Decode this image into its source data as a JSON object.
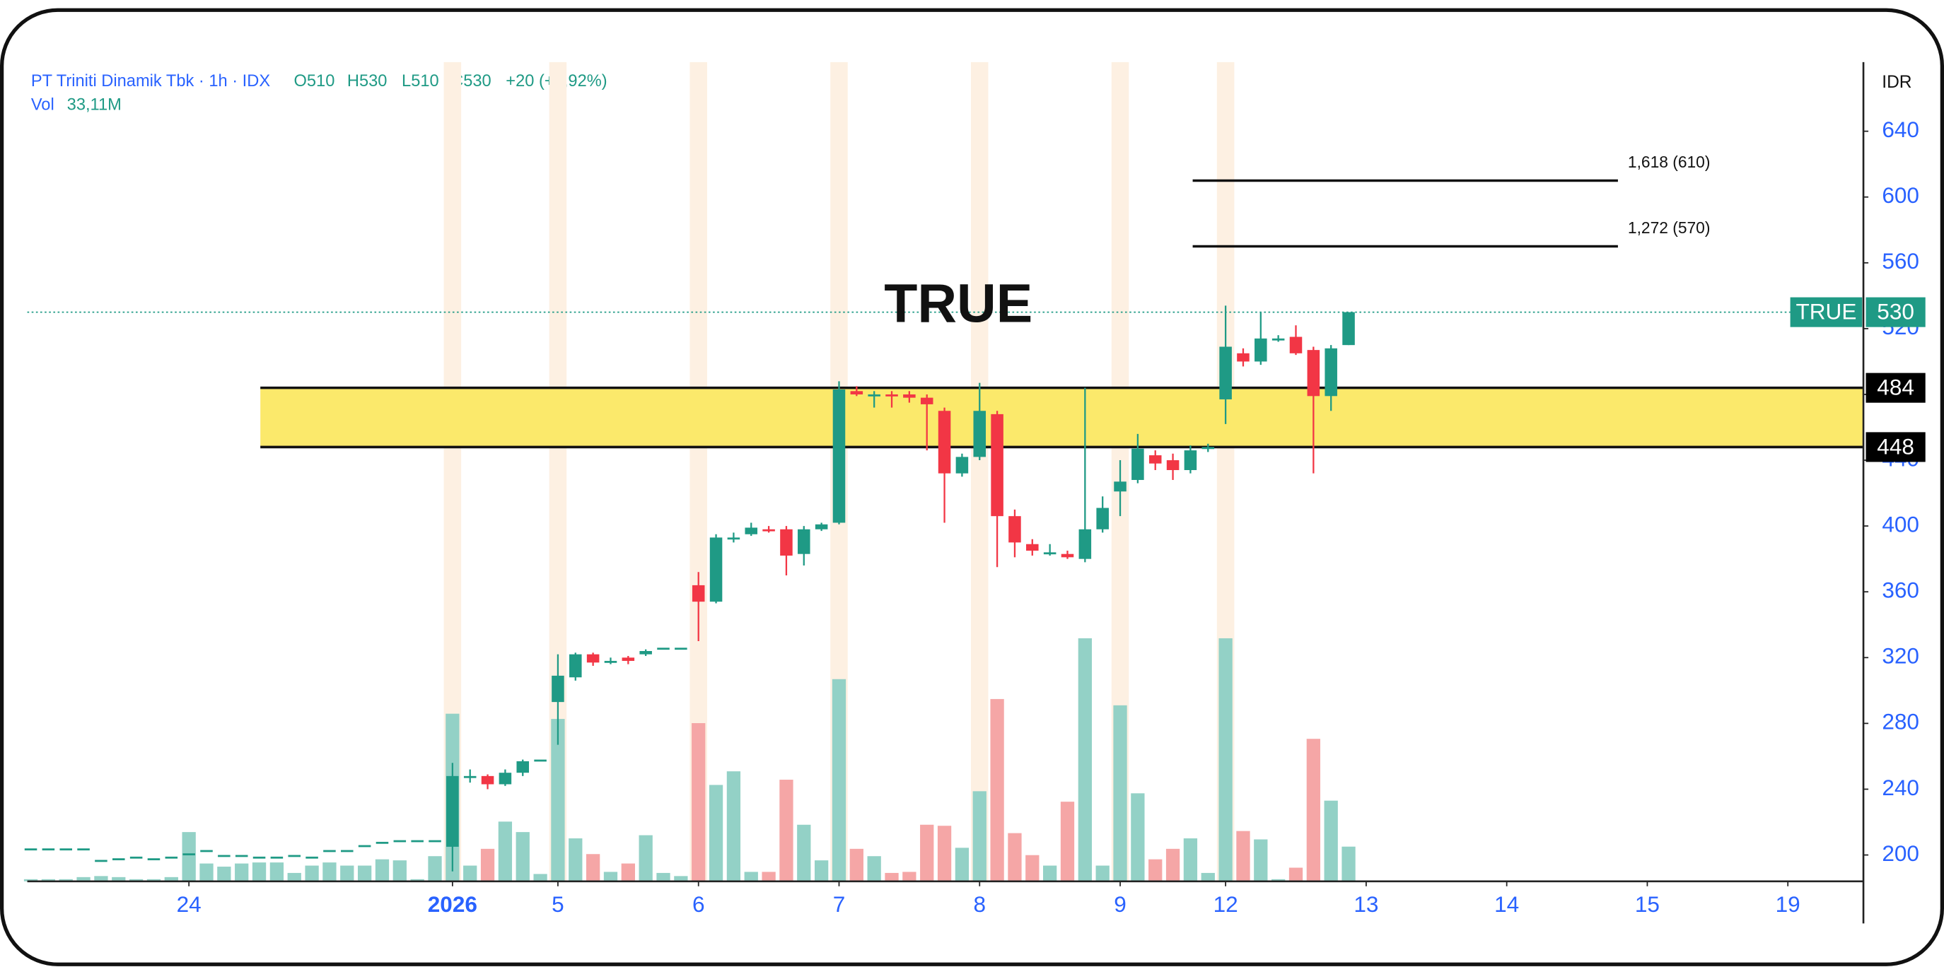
{
  "chart_data": {
    "type": "candlestick",
    "header": {
      "symbol": "PT Triniti Dinamik Tbk · 1h · IDX",
      "ohlc": [
        "O510",
        "H530",
        "L510",
        "C530"
      ],
      "change": "+20 (+3,92%)",
      "volume_name": "Vol",
      "volume_value": "33,11M"
    },
    "currency": "IDR",
    "annotation": "TRUE",
    "symbol_tag": "TRUE",
    "open": [
      204,
      204,
      204,
      204,
      197,
      198,
      199,
      198,
      199,
      201,
      203,
      200,
      200,
      199,
      199,
      200,
      199,
      203,
      203,
      206,
      208,
      209,
      209,
      209,
      205,
      248,
      248,
      243,
      250,
      258,
      293,
      308,
      322,
      318,
      320,
      322,
      326,
      326,
      364,
      354,
      392,
      395,
      398,
      398,
      383,
      398,
      402,
      482,
      480,
      480,
      480,
      478,
      470,
      432,
      442,
      468,
      406,
      389,
      384,
      383,
      380,
      398,
      421,
      428,
      443,
      440,
      434,
      447,
      477,
      505,
      500,
      514,
      515,
      507,
      479,
      510
    ],
    "high": [
      204,
      204,
      204,
      204,
      197,
      198,
      199,
      198,
      199,
      201,
      203,
      200,
      200,
      199,
      199,
      200,
      199,
      203,
      203,
      206,
      208,
      209,
      209,
      209,
      256,
      252,
      249,
      252,
      258,
      258,
      322,
      323,
      323,
      320,
      321,
      325,
      326,
      326,
      372,
      395,
      396,
      402,
      400,
      400,
      400,
      402,
      488,
      485,
      482,
      482,
      482,
      480,
      472,
      444,
      487,
      470,
      410,
      392,
      389,
      385,
      484,
      418,
      440,
      456,
      446,
      444,
      449,
      450,
      534,
      508,
      530,
      516,
      522,
      509,
      510,
      530
    ],
    "low": [
      204,
      204,
      204,
      204,
      197,
      198,
      199,
      198,
      199,
      201,
      203,
      200,
      200,
      199,
      199,
      200,
      199,
      203,
      203,
      206,
      208,
      209,
      209,
      209,
      190,
      244,
      240,
      242,
      248,
      258,
      267,
      306,
      315,
      316,
      316,
      321,
      326,
      326,
      330,
      353,
      390,
      394,
      396,
      370,
      376,
      397,
      401,
      479,
      472,
      472,
      475,
      446,
      402,
      430,
      440,
      375,
      381,
      382,
      382,
      380,
      378,
      396,
      406,
      426,
      434,
      428,
      432,
      445,
      462,
      497,
      498,
      512,
      504,
      432,
      470,
      510
    ],
    "close": [
      204,
      204,
      204,
      204,
      197,
      198,
      199,
      198,
      199,
      201,
      203,
      200,
      200,
      199,
      199,
      200,
      199,
      203,
      203,
      206,
      208,
      209,
      209,
      209,
      248,
      248,
      243,
      250,
      257,
      258,
      309,
      322,
      317,
      318,
      318,
      324,
      326,
      326,
      354,
      393,
      393,
      399,
      397,
      382,
      398,
      401,
      483,
      480,
      480,
      479,
      478,
      474,
      432,
      442,
      470,
      406,
      390,
      385,
      384,
      381,
      398,
      411,
      427,
      447,
      438,
      434,
      446,
      448,
      509,
      500,
      514,
      514,
      505,
      479,
      508,
      530
    ],
    "volume": [
      2,
      2,
      2,
      4,
      5,
      4,
      2,
      2,
      4,
      47,
      17,
      14,
      17,
      18,
      18,
      8,
      15,
      18,
      15,
      15,
      21,
      20,
      2,
      24,
      160,
      15,
      31,
      57,
      47,
      7,
      155,
      41,
      26,
      9,
      17,
      44,
      8,
      5,
      151,
      92,
      105,
      9,
      9,
      97,
      54,
      20,
      193,
      31,
      24,
      8,
      9,
      54,
      53,
      32,
      86,
      174,
      46,
      25,
      15,
      76,
      232,
      15,
      168,
      84,
      21,
      31,
      41,
      8,
      232,
      48,
      40,
      2,
      13,
      136,
      77,
      33.11
    ],
    "xlim": [
      -0.2,
      104.3
    ],
    "xticks": [
      {
        "value": 9,
        "label": "24"
      },
      {
        "value": 24,
        "label": "2026"
      },
      {
        "value": 30,
        "label": "5"
      },
      {
        "value": 38,
        "label": "6"
      },
      {
        "value": 46,
        "label": "7"
      },
      {
        "value": 54,
        "label": "8"
      },
      {
        "value": 62,
        "label": "9"
      },
      {
        "value": 68,
        "label": "12"
      },
      {
        "value": 76,
        "label": "13"
      },
      {
        "value": 84,
        "label": "14"
      },
      {
        "value": 92,
        "label": "15"
      },
      {
        "value": 100,
        "label": "19"
      }
    ],
    "ylim": [
      184,
      682
    ],
    "yticks": [
      200,
      240,
      280,
      320,
      360,
      400,
      440,
      480,
      520,
      560,
      600,
      640
    ],
    "volume_lim": [
      0,
      782
    ],
    "zone": {
      "lower": 448,
      "upper": 484,
      "color": "#fbe96b"
    },
    "levels": [
      {
        "label": "1,618 (610)",
        "value": 610
      },
      {
        "label": "1,272 (570)",
        "value": 570
      }
    ],
    "up_color": "#1f9a85",
    "down_color": "#f23645",
    "up_volume_color": "#93d1c6",
    "down_volume_color": "#f5a6a6"
  }
}
